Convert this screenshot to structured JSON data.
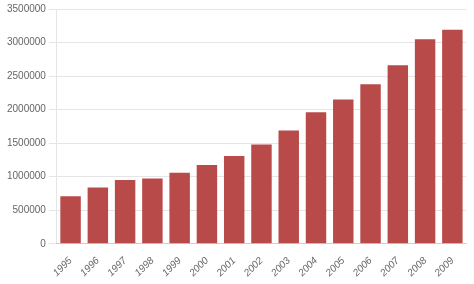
{
  "chart_data": {
    "type": "bar",
    "categories": [
      "1995",
      "1996",
      "1997",
      "1998",
      "1999",
      "2000",
      "2001",
      "2002",
      "2003",
      "2004",
      "2005",
      "2006",
      "2007",
      "2008",
      "2009"
    ],
    "values": [
      710000,
      840000,
      950000,
      975000,
      1060000,
      1175000,
      1310000,
      1480000,
      1690000,
      1960000,
      2150000,
      2380000,
      2660000,
      3050000,
      3190000
    ],
    "color": "#b94a4a",
    "ylim": [
      0,
      3500000
    ],
    "yticks": [
      0,
      500000,
      1000000,
      1500000,
      2000000,
      2500000,
      3000000,
      3500000
    ],
    "grid": true
  }
}
